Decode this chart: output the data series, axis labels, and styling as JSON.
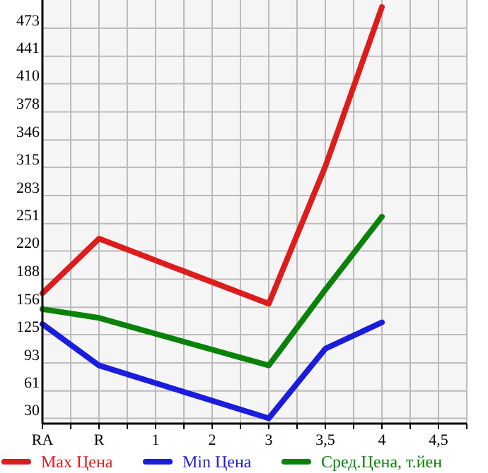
{
  "chart_data": {
    "type": "line",
    "categories": [
      "RA",
      "R",
      "1",
      "2",
      "3",
      "3,5",
      "4",
      "4,5"
    ],
    "series": [
      {
        "name": "Max Цена",
        "color": "#dd1c1c",
        "values": [
          172,
          234,
          null,
          null,
          160,
          316,
          497,
          null
        ]
      },
      {
        "name": "Min Цена",
        "color": "#1c1cdd",
        "values": [
          137,
          90,
          null,
          null,
          30,
          109,
          139,
          null
        ]
      },
      {
        "name": "Сред.Цена, т.йен",
        "color": "#0a820a",
        "values": [
          154,
          144,
          null,
          null,
          90,
          176,
          259,
          null
        ]
      }
    ],
    "ylim": [
      24,
      505
    ],
    "yticks": [
      30,
      61,
      93,
      125,
      156,
      188,
      220,
      251,
      283,
      315,
      346,
      378,
      410,
      441,
      473
    ],
    "grid": true,
    "legend": "bottom",
    "line_style": "solid"
  }
}
